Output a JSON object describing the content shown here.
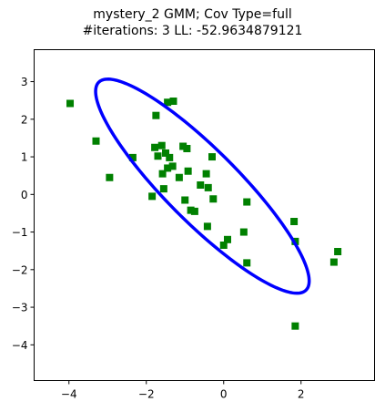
{
  "chart_data": {
    "type": "scatter",
    "title": "mystery_2 GMM; Cov Type=full",
    "subtitle": "#iterations: 3 LL: -52.9634879121",
    "xlabel": "",
    "ylabel": "",
    "xlim": [
      -4.9,
      3.9
    ],
    "ylim": [
      -4.95,
      3.85
    ],
    "xticks": [
      -4,
      -2,
      0,
      2
    ],
    "yticks": [
      -4,
      -3,
      -2,
      -1,
      0,
      1,
      2,
      3
    ],
    "xtick_labels": [
      "−4",
      "−2",
      "0",
      "2"
    ],
    "ytick_labels": [
      "−4",
      "−3",
      "−2",
      "−1",
      "0",
      "1",
      "2",
      "3"
    ],
    "grid": false,
    "series": [
      {
        "marker": "square",
        "color": "#008000",
        "points": [
          [
            -3.97,
            2.42
          ],
          [
            -3.3,
            1.42
          ],
          [
            -2.95,
            0.45
          ],
          [
            -2.35,
            0.98
          ],
          [
            -1.85,
            -0.05
          ],
          [
            -1.78,
            1.25
          ],
          [
            -1.75,
            2.1
          ],
          [
            -1.7,
            1.02
          ],
          [
            -1.6,
            1.3
          ],
          [
            -1.58,
            0.55
          ],
          [
            -1.55,
            0.15
          ],
          [
            -1.5,
            1.1
          ],
          [
            -1.45,
            0.7
          ],
          [
            -1.45,
            2.45
          ],
          [
            -1.4,
            0.98
          ],
          [
            -1.32,
            0.75
          ],
          [
            -1.3,
            2.48
          ],
          [
            -1.15,
            0.45
          ],
          [
            -1.05,
            1.28
          ],
          [
            -1.0,
            -0.15
          ],
          [
            -0.95,
            1.22
          ],
          [
            -0.92,
            0.62
          ],
          [
            -0.85,
            -0.42
          ],
          [
            -0.75,
            -0.45
          ],
          [
            -0.6,
            0.25
          ],
          [
            -0.45,
            0.55
          ],
          [
            -0.42,
            -0.85
          ],
          [
            -0.4,
            0.18
          ],
          [
            -0.3,
            1.0
          ],
          [
            -0.27,
            -0.12
          ],
          [
            0.0,
            -1.35
          ],
          [
            0.1,
            -1.2
          ],
          [
            0.52,
            -1.0
          ],
          [
            0.6,
            -0.2
          ],
          [
            0.6,
            -1.82
          ],
          [
            1.82,
            -0.72
          ],
          [
            1.85,
            -1.25
          ],
          [
            1.85,
            -3.5
          ],
          [
            2.85,
            -1.8
          ],
          [
            2.95,
            -1.52
          ]
        ]
      }
    ],
    "ellipse": {
      "color": "#0000ff",
      "center": [
        -0.55,
        0.22
      ],
      "semi_axes": [
        3.85,
        0.95
      ],
      "angle_deg": -46
    }
  }
}
